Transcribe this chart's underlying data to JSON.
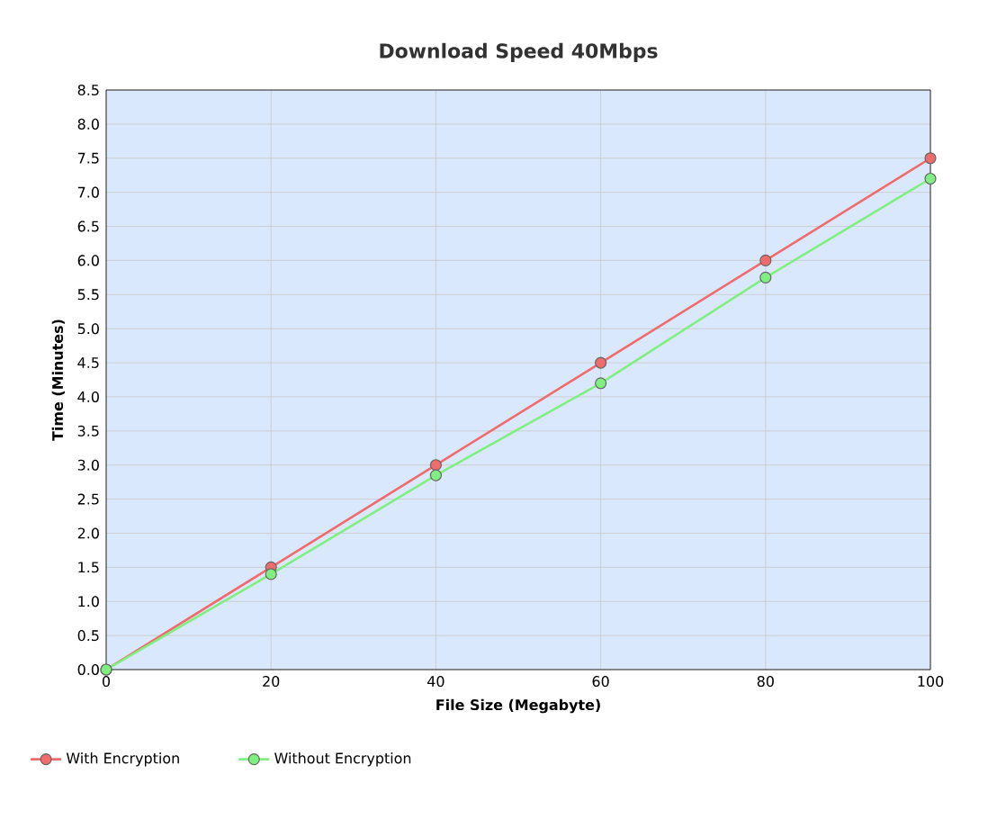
{
  "chart_data": {
    "type": "line",
    "title": "Download Speed 40Mbps",
    "xlabel": "File Size (Megabyte)",
    "ylabel": "Time (Minutes)",
    "x": [
      0,
      20,
      40,
      60,
      80,
      100
    ],
    "series": [
      {
        "name": "With Encryption",
        "color": "#f06b6b",
        "values": [
          0,
          1.5,
          3.0,
          4.5,
          6.0,
          7.5
        ]
      },
      {
        "name": "Without Encryption",
        "color": "#7ff07f",
        "values": [
          0,
          1.4,
          2.85,
          4.2,
          5.75,
          7.2
        ]
      }
    ],
    "xlim": [
      0,
      100
    ],
    "xticks": [
      0,
      20,
      40,
      60,
      80,
      100
    ],
    "ylim": [
      0,
      8.5
    ],
    "yticks": [
      {
        "value": 0,
        "label": "0.0"
      },
      0.5,
      {
        "value": 1,
        "label": "1.0"
      },
      1.5,
      {
        "value": 2,
        "label": "2.0"
      },
      2.5,
      {
        "value": 3,
        "label": "3.0"
      },
      3.5,
      {
        "value": 4,
        "label": "4.0"
      },
      4.5,
      {
        "value": 5,
        "label": "5.0"
      },
      5.5,
      {
        "value": 6,
        "label": "6.0"
      },
      6.5,
      {
        "value": 7,
        "label": "7.0"
      },
      7.5,
      {
        "value": 8,
        "label": "8.0"
      },
      8.5
    ],
    "grid": true,
    "legend": "bottom left",
    "marker": "circle",
    "line_style": "solid"
  }
}
